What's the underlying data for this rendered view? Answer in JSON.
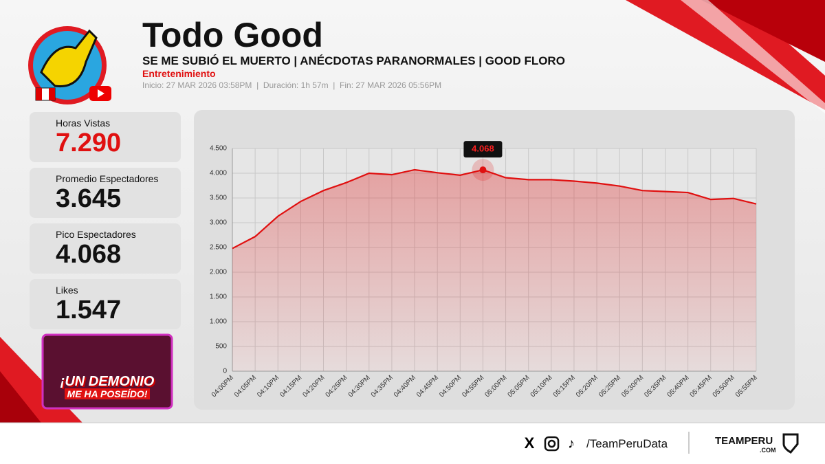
{
  "header": {
    "title": "Todo Good",
    "subtitle": "SE ME SUBIÓ EL MUERTO | ANÉCDOTAS PARANORMALES | GOOD FLORO",
    "category": "Entretenimiento",
    "meta": "Inicio: 27 MAR 2026 03:58PM  |  Duración: 1h 57m  |  Fin: 27 MAR 2026 05:56PM"
  },
  "stats": [
    {
      "label": "Horas Vistas",
      "value": "7.290"
    },
    {
      "label": "Promedio Espectadores",
      "value": "3.645"
    },
    {
      "label": "Pico Espectadores",
      "value": "4.068"
    },
    {
      "label": "Likes",
      "value": "1.547"
    }
  ],
  "thumbnail": {
    "lines": [
      "¡UN DEMONIO",
      "ME HA POSEÍDO!"
    ]
  },
  "chart_data": {
    "type": "area",
    "categories": [
      "04:00PM",
      "04:05PM",
      "04:10PM",
      "04:15PM",
      "04:20PM",
      "04:25PM",
      "04:30PM",
      "04:35PM",
      "04:40PM",
      "04:45PM",
      "04:50PM",
      "04:55PM",
      "05:00PM",
      "05:05PM",
      "05:10PM",
      "05:15PM",
      "05:20PM",
      "05:25PM",
      "05:30PM",
      "05:35PM",
      "05:40PM",
      "05:45PM",
      "05:50PM",
      "05:55PM"
    ],
    "values": [
      2480,
      2720,
      3130,
      3430,
      3650,
      3810,
      4000,
      3970,
      4070,
      4010,
      3960,
      4068,
      3910,
      3870,
      3870,
      3840,
      3800,
      3740,
      3650,
      3630,
      3610,
      3470,
      3490,
      3380
    ],
    "value_labels": [
      null,
      null,
      null,
      null,
      null,
      null,
      null,
      null,
      null,
      null,
      null,
      "4.068",
      null,
      null,
      null,
      null,
      null,
      null,
      null,
      null,
      null,
      null,
      null,
      null
    ],
    "color": "#e01010",
    "ylim": [
      0,
      4500
    ],
    "yticks": [
      0,
      500,
      {
        "value": 1000,
        "label": "1.000"
      },
      {
        "value": 1500,
        "label": "1.500"
      },
      {
        "value": 2000,
        "label": "2.000"
      },
      {
        "value": 2500,
        "label": "2.500"
      },
      {
        "value": 3000,
        "label": "3.000"
      },
      {
        "value": 3500,
        "label": "3.500"
      },
      {
        "value": 4000,
        "label": "4.000"
      },
      {
        "value": 4500,
        "label": "4.500"
      }
    ],
    "grid": true
  },
  "footer": {
    "handle": "/TeamPeruData",
    "brand": "TEAMPERU",
    "brand_sub": ".COM"
  }
}
